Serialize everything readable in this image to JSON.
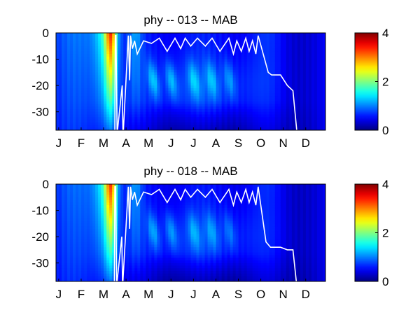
{
  "chart_data": [
    {
      "type": "heatmap",
      "title": "phy -- 013 -- MAB",
      "xlabel": "",
      "ylabel": "",
      "x_ticks": [
        "J",
        "F",
        "M",
        "A",
        "M",
        "J",
        "J",
        "A",
        "S",
        "O",
        "N",
        "D"
      ],
      "y_ticks": [
        0,
        -10,
        -20,
        -30
      ],
      "ylim": [
        -37,
        0
      ],
      "colorbar": {
        "min": 0,
        "max": 4,
        "ticks": [
          0,
          2,
          4
        ],
        "colormap": "jet"
      },
      "mixed_layer_line": {
        "color": "#ffffff",
        "month": [
          2.62,
          2.64,
          2.67,
          2.72,
          2.74,
          2.95,
          2.98,
          3.0,
          3.22,
          3.28,
          3.32,
          3.4,
          3.5,
          3.62,
          3.9,
          4.25,
          4.6,
          4.95,
          5.3,
          5.55,
          5.75,
          6.0,
          6.3,
          6.65,
          6.95,
          7.3,
          7.7,
          7.9,
          8.05,
          8.25,
          8.45,
          8.6,
          8.75,
          8.9,
          9.0,
          9.45,
          9.6,
          10.0,
          10.3,
          10.55,
          10.72
        ],
        "depth": [
          -37,
          -1,
          -1,
          -37,
          -37,
          -20,
          -37,
          -37,
          -1,
          -18,
          -1,
          -6,
          -3,
          -8,
          -3,
          -4,
          -2,
          -7,
          -2,
          -6,
          -2,
          -5,
          -2,
          -5,
          -2,
          -7,
          -2,
          -8,
          -3,
          -7,
          -2,
          -7,
          -3,
          -8,
          -1,
          -15,
          -16,
          -16,
          -20,
          -22,
          -37
        ]
      },
      "intensity_overview": "Mostly 0.3–1.0 (blue); early-March bloom up to ~2.5–3 in the surface layer; subsurface patches ~1.0–1.4 between April and September at 15–25 m; weaker water below the mixed layer near the bottom."
    },
    {
      "type": "heatmap",
      "title": "phy -- 018 -- MAB",
      "xlabel": "",
      "ylabel": "",
      "x_ticks": [
        "J",
        "F",
        "M",
        "A",
        "M",
        "J",
        "J",
        "A",
        "S",
        "O",
        "N",
        "D"
      ],
      "y_ticks": [
        0,
        -10,
        -20,
        -30
      ],
      "ylim": [
        -37,
        0
      ],
      "colorbar": {
        "min": 0,
        "max": 4,
        "ticks": [
          0,
          2,
          4
        ],
        "colormap": "jet"
      },
      "mixed_layer_line": {
        "color": "#ffffff",
        "month": [
          2.6,
          2.62,
          2.66,
          2.7,
          2.72,
          2.93,
          2.96,
          2.98,
          3.22,
          3.28,
          3.32,
          3.4,
          3.5,
          3.62,
          3.9,
          4.25,
          4.6,
          4.95,
          5.3,
          5.55,
          5.75,
          6.0,
          6.3,
          6.65,
          6.95,
          7.3,
          7.7,
          7.9,
          8.05,
          8.25,
          8.45,
          8.6,
          8.75,
          8.9,
          9.0,
          9.35,
          9.55,
          10.0,
          10.3,
          10.55,
          10.7
        ],
        "depth": [
          -37,
          -1,
          -1,
          -37,
          -37,
          -20,
          -37,
          -37,
          -1,
          -17,
          -1,
          -6,
          -3,
          -8,
          -3,
          -4,
          -2,
          -7,
          -2,
          -6,
          -2,
          -5,
          -2,
          -5,
          -2,
          -7,
          -2,
          -8,
          -3,
          -7,
          -2,
          -7,
          -3,
          -8,
          -1,
          -22,
          -24,
          -24,
          -25,
          -25,
          -37
        ]
      },
      "intensity_overview": "Same pattern as the upper panel, slightly weaker subsurface patches and a deeper autumn mixed layer."
    }
  ],
  "colors": {
    "background": "#ffffff",
    "axes": "#000000",
    "line": "#ffffff",
    "colormap": "jet"
  }
}
